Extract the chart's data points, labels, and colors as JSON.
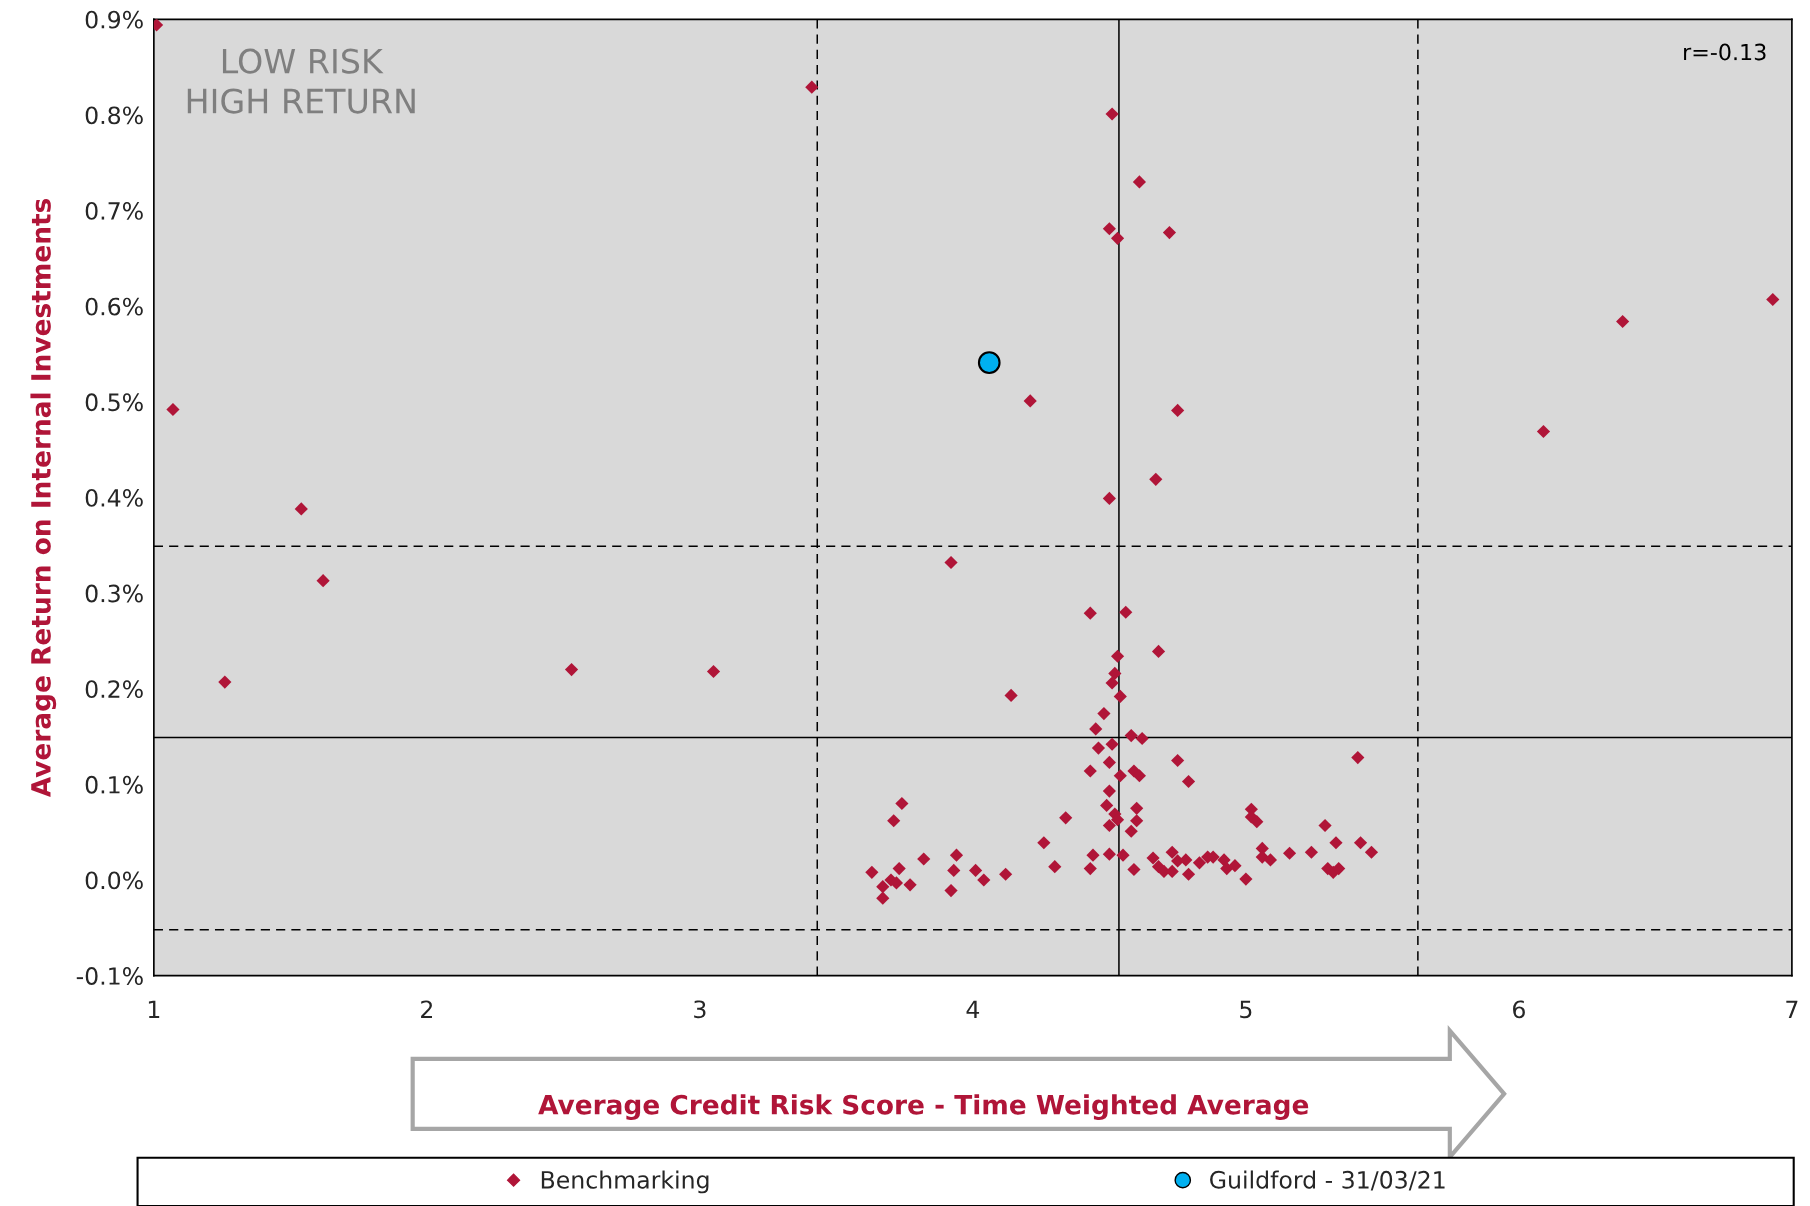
{
  "chart_data": {
    "type": "scatter",
    "xlabel": "Average Credit Risk Score - Time Weighted Average",
    "ylabel": "Average Return on Internal Investments",
    "annotations": [
      "LOW RISK\nHIGH RETURN",
      "r=-0.13"
    ],
    "xlim": [
      1,
      7
    ],
    "xticks": [
      1,
      2,
      3,
      4,
      5,
      6,
      7
    ],
    "ylim": [
      -0.1,
      0.9
    ],
    "yticks": [
      {
        "value": -0.1,
        "label": "-0.1%"
      },
      {
        "value": 0.0,
        "label": "0.0%"
      },
      {
        "value": 0.1,
        "label": "0.1%"
      },
      {
        "value": 0.2,
        "label": "0.2%"
      },
      {
        "value": 0.3,
        "label": "0.3%"
      },
      {
        "value": 0.4,
        "label": "0.4%"
      },
      {
        "value": 0.5,
        "label": "0.5%"
      },
      {
        "value": 0.6,
        "label": "0.6%"
      },
      {
        "value": 0.7,
        "label": "0.7%"
      },
      {
        "value": 0.8,
        "label": "0.8%"
      },
      {
        "value": 0.9,
        "label": "0.9%"
      }
    ],
    "grid": false,
    "legend": "bottom",
    "ref_lines": [
      {
        "axis": "x",
        "value": 3.43,
        "color": "#000000",
        "line_style": "dashed"
      },
      {
        "axis": "x",
        "value": 4.535,
        "color": "#000000",
        "line_style": "solid"
      },
      {
        "axis": "x",
        "value": 5.63,
        "color": "#000000",
        "line_style": "dashed"
      },
      {
        "axis": "y",
        "value": 0.349,
        "color": "#000000",
        "line_style": "dashed"
      },
      {
        "axis": "y",
        "value": 0.149,
        "color": "#000000",
        "line_style": "solid"
      },
      {
        "axis": "y",
        "value": -0.052,
        "color": "#000000",
        "line_style": "dashed"
      }
    ],
    "series": [
      {
        "name": "Benchmarking",
        "color": "#b01538",
        "marker": "diamond",
        "x": [
          1.01,
          1.07,
          1.54,
          1.62,
          1.26,
          2.53,
          3.05,
          3.41,
          3.92,
          4.21,
          4.14,
          4.51,
          4.61,
          4.5,
          4.53,
          4.72,
          4.75,
          4.67,
          4.5,
          6.09,
          6.38,
          6.93,
          4.43,
          4.56,
          4.68,
          4.53,
          4.52,
          4.51,
          4.54,
          4.48,
          4.45,
          4.46,
          4.43,
          4.58,
          4.62,
          4.51,
          4.5,
          4.54,
          4.59,
          4.61,
          4.75,
          4.79,
          5.41,
          4.34,
          4.26,
          4.3,
          4.43,
          4.44,
          4.5,
          4.49,
          4.5,
          4.52,
          4.53,
          4.5,
          4.55,
          4.59,
          4.6,
          4.6,
          4.58,
          4.66,
          4.68,
          4.7,
          4.73,
          4.73,
          4.75,
          4.78,
          4.79,
          4.83,
          4.86,
          4.88,
          4.92,
          4.93,
          4.96,
          5.0,
          5.02,
          5.02,
          5.04,
          5.06,
          5.06,
          5.09,
          5.16,
          5.24,
          5.29,
          5.3,
          5.32,
          5.34,
          5.33,
          5.42,
          5.46,
          3.63,
          3.67,
          3.67,
          3.7,
          3.71,
          3.74,
          3.73,
          3.72,
          3.77,
          3.82,
          3.92,
          3.94,
          3.93,
          4.01,
          4.04,
          4.12
        ],
        "values": [
          0.894,
          0.492,
          0.388,
          0.313,
          0.207,
          0.22,
          0.218,
          0.829,
          0.332,
          0.501,
          0.193,
          0.801,
          0.73,
          0.681,
          0.671,
          0.677,
          0.491,
          0.419,
          0.399,
          0.469,
          0.584,
          0.607,
          0.279,
          0.28,
          0.239,
          0.234,
          0.216,
          0.206,
          0.192,
          0.174,
          0.158,
          0.138,
          0.114,
          0.151,
          0.148,
          0.142,
          0.123,
          0.109,
          0.114,
          0.109,
          0.125,
          0.103,
          0.128,
          0.065,
          0.039,
          0.014,
          0.012,
          0.026,
          0.093,
          0.078,
          0.057,
          0.069,
          0.063,
          0.027,
          0.026,
          0.011,
          0.075,
          0.062,
          0.051,
          0.023,
          0.014,
          0.009,
          0.009,
          0.029,
          0.02,
          0.021,
          0.006,
          0.018,
          0.024,
          0.024,
          0.021,
          0.012,
          0.015,
          0.001,
          0.074,
          0.066,
          0.061,
          0.033,
          0.024,
          0.021,
          0.028,
          0.029,
          0.057,
          0.012,
          0.008,
          0.012,
          0.039,
          0.039,
          0.029,
          0.008,
          -0.007,
          -0.019,
          0.0,
          0.062,
          0.08,
          0.012,
          -0.003,
          -0.005,
          0.022,
          -0.011,
          0.026,
          0.01,
          0.01,
          0.0,
          0.006
        ]
      },
      {
        "name": "Guildford - 31/03/21",
        "color": "#00b0f0",
        "marker": "circle",
        "x": [
          4.06
        ],
        "values": [
          0.541
        ]
      }
    ]
  }
}
